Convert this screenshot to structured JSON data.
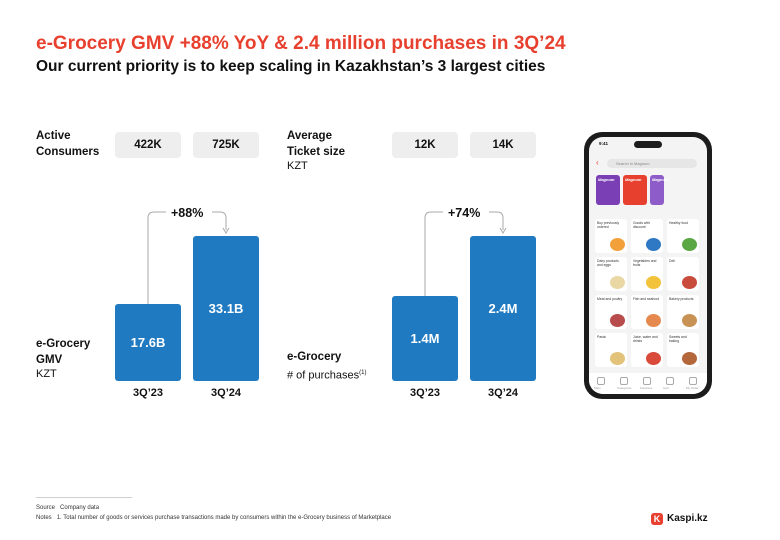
{
  "header": {
    "title": "e-Grocery GMV +88% YoY & 2.4 million purchases in 3Q’24",
    "subtitle": "Our current priority is to keep scaling in Kazakhstan’s 3 largest cities"
  },
  "left_panel": {
    "consumers_label_line1": "Active",
    "consumers_label_line2": "Consumers",
    "consumers_values": [
      "422K",
      "725K"
    ],
    "growth": "+88%",
    "metric_label_line1": "e-Grocery",
    "metric_label_line2": "GMV",
    "metric_unit": "KZT",
    "bars": [
      {
        "period": "3Q’23",
        "value": 17.6,
        "label": "17.6B"
      },
      {
        "period": "3Q’24",
        "value": 33.1,
        "label": "33.1B"
      }
    ]
  },
  "right_panel": {
    "ticket_label_line1": "Average",
    "ticket_label_line2": "Ticket size",
    "ticket_unit": "KZT",
    "ticket_values": [
      "12K",
      "14K"
    ],
    "growth": "+74%",
    "metric_label_line1": "e-Grocery",
    "metric_label_line2": "# of purchases",
    "metric_footnote_mark": "(1)",
    "bars": [
      {
        "period": "3Q’23",
        "value": 1.4,
        "label": "1.4M"
      },
      {
        "period": "3Q’24",
        "value": 2.4,
        "label": "2.4M"
      }
    ]
  },
  "phone": {
    "time": "9:41",
    "search_placeholder": "Search in Magnum",
    "banners": [
      {
        "brand": "Magnum",
        "color": "#7b3fb5"
      },
      {
        "brand": "Magnum",
        "color": "#e8402e"
      },
      {
        "brand": "Magnum",
        "color": "#8e5cc9"
      }
    ],
    "categories": [
      {
        "label": "Buy previously ordered",
        "color": "#f2a13a"
      },
      {
        "label": "Goods with discount",
        "color": "#2f78c4"
      },
      {
        "label": "Healthy food",
        "color": "#5aa843"
      },
      {
        "label": "Dairy products and eggs",
        "color": "#e9d7a4"
      },
      {
        "label": "Vegetables and fruits",
        "color": "#f2c23a"
      },
      {
        "label": "Deli",
        "color": "#c84b3c"
      },
      {
        "label": "Meat and poultry",
        "color": "#b84b4b"
      },
      {
        "label": "Fish and seafood",
        "color": "#e6894f"
      },
      {
        "label": "Bakery products",
        "color": "#c99255"
      },
      {
        "label": "Pasta",
        "color": "#e3c27a"
      },
      {
        "label": "Juice, water and drinks",
        "color": "#d94a3a"
      },
      {
        "label": "Sweets and baking",
        "color": "#b3673a"
      }
    ],
    "nav": [
      "Main",
      "Categories",
      "Favorites",
      "Cart",
      "My Order"
    ]
  },
  "footer": {
    "source_key": "Source",
    "source_text": "Company data",
    "notes_key": "Notes",
    "notes_text": "1. Total number of goods or services purchase transactions made by consumers within the e-Grocery business of Marketplace"
  },
  "logo": {
    "text": "Kaspi.kz",
    "mark": "K"
  },
  "colors": {
    "accent": "#e8402e",
    "bar": "#1f7ac2",
    "pill": "#eeeeee"
  }
}
